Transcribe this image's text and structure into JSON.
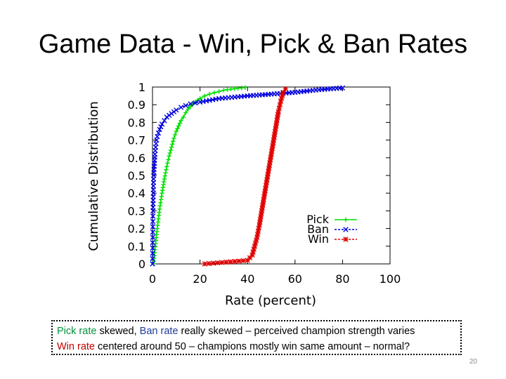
{
  "slide": {
    "title": "Game Data - Win, Pick & Ban Rates",
    "page_number": "20"
  },
  "caption": {
    "line1": [
      {
        "text": "Pick rate",
        "color": "#00913a"
      },
      {
        "text": " skewed, ",
        "color": "#000000"
      },
      {
        "text": "Ban rate",
        "color": "#1f3c99"
      },
      {
        "text": " really skewed – perceived champion strength varies",
        "color": "#000000"
      }
    ],
    "line2": [
      {
        "text": "Win rate",
        "color": "#c00000"
      },
      {
        "text": " centered around 50 – champions mostly win same amount – normal?",
        "color": "#000000"
      }
    ]
  },
  "chart_data": {
    "type": "line",
    "xlabel": "Rate (percent)",
    "ylabel": "Cumulative Distribution",
    "xlim": [
      0,
      100
    ],
    "ylim": [
      0,
      1
    ],
    "xticks": [
      "0",
      "20",
      "40",
      "60",
      "80",
      "100"
    ],
    "yticks": [
      "0",
      "0.1",
      "0.2",
      "0.3",
      "0.4",
      "0.5",
      "0.6",
      "0.7",
      "0.8",
      "0.9",
      "1"
    ],
    "grid": false,
    "legend_position": "bottom-right",
    "series": [
      {
        "name": "Pick",
        "color": "#00e000",
        "marker": "plus",
        "x": [
          0.5,
          1,
          2,
          3,
          4,
          5,
          6,
          7,
          8,
          9,
          10,
          11,
          12,
          13,
          14,
          15,
          16,
          17,
          18,
          19,
          20,
          22,
          24,
          26,
          28,
          30,
          33,
          36,
          39
        ],
        "y": [
          0.0,
          0.08,
          0.2,
          0.31,
          0.4,
          0.48,
          0.55,
          0.61,
          0.66,
          0.71,
          0.75,
          0.78,
          0.81,
          0.83,
          0.855,
          0.875,
          0.89,
          0.905,
          0.915,
          0.925,
          0.935,
          0.95,
          0.96,
          0.968,
          0.975,
          0.982,
          0.988,
          0.993,
          0.997
        ]
      },
      {
        "name": "Ban",
        "color": "#0000e0",
        "marker": "x",
        "x": [
          0,
          0.2,
          0.5,
          1,
          1.5,
          2,
          3,
          4,
          5,
          6,
          8,
          10,
          12,
          14,
          16,
          18,
          20,
          24,
          28,
          32,
          36,
          40,
          45,
          50,
          55,
          60,
          70,
          80
        ],
        "y": [
          0.0,
          0.3,
          0.5,
          0.62,
          0.68,
          0.72,
          0.76,
          0.79,
          0.81,
          0.83,
          0.85,
          0.87,
          0.885,
          0.895,
          0.905,
          0.91,
          0.915,
          0.925,
          0.935,
          0.94,
          0.945,
          0.95,
          0.955,
          0.96,
          0.965,
          0.97,
          0.985,
          0.995
        ]
      },
      {
        "name": "Win",
        "color": "#e00000",
        "marker": "star",
        "x": [
          22,
          40,
          42,
          43,
          44,
          45,
          46,
          47,
          48,
          49,
          50,
          51,
          52,
          53,
          54,
          55,
          56
        ],
        "y": [
          0.0,
          0.02,
          0.05,
          0.1,
          0.15,
          0.22,
          0.3,
          0.38,
          0.46,
          0.54,
          0.62,
          0.7,
          0.78,
          0.86,
          0.92,
          0.97,
          0.99
        ]
      }
    ]
  }
}
